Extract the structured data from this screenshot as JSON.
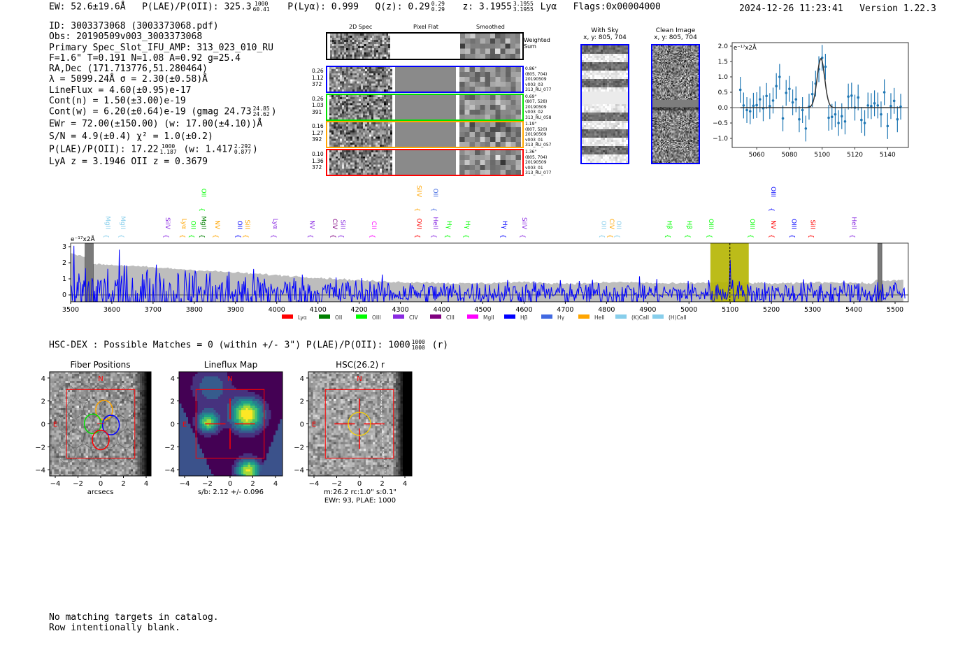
{
  "header": {
    "ew": "EW: 52.6±19.6Å",
    "plae_label": "P(LAE)/P(OII): 325.3",
    "plae_hi": "1000",
    "plae_lo": "60.41",
    "plya": "P(Lyα): 0.999",
    "qz": "Q(z): 0.29",
    "qz_hi": "0.29",
    "qz_lo": "0.29",
    "z": "z: 3.1955",
    "z_hi": "3.1955",
    "z_lo": "3.1955",
    "z_line": "Lyα",
    "flags": "Flags:0x00004000",
    "datetime": "2024-12-26 11:23:41",
    "version": "Version 1.22.3"
  },
  "info": {
    "id": "ID: 3003373068 (3003373068.pdf)",
    "obs": "Obs: 20190509v003_3003373068",
    "primary": "Primary Spec_Slot_IFU_AMP: 313_023_010_RU",
    "params": "F=1.6\"  T=0.191  N=1.08  A=0.92  g=25.4",
    "radec": "RA,Dec (171.713776,51.280464)",
    "lambda": "λ = 5099.24Å   σ = 2.30(±0.58)Å",
    "lineflux": "LineFlux = 4.60(±0.95)e-17",
    "contn": "Cont(n) = 1.50(±3.00)e-19",
    "contw": "Cont(w) = 6.20(±0.64)e-19 (gmag 24.73",
    "contw_hi": "24.85",
    "contw_lo": "24.62",
    "contw_end": ")",
    "ewr": "EWr = 72.00(±150.00) (w: 17.00(±4.10))Å",
    "sn": "S/N = 4.9(±0.4)   χ² = 1.0(±0.2)",
    "plae": "P(LAE)/P(OII): 17.22",
    "plae_hi": "1000",
    "plae_lo": "1.187",
    "plae_w": "(w: 1.417",
    "plae_w_hi": "2.292",
    "plae_w_lo": "0.877",
    "plae_end": ")",
    "z": "LyA z = 3.1946   OII z = 0.3679"
  },
  "spec2d": {
    "col_labels": [
      "2D Spec",
      "Pixel Flat",
      "Smoothed"
    ],
    "weighted_label": [
      "Weighted",
      "Sum"
    ],
    "rows": [
      {
        "color": "#0000ff",
        "left": [
          "0.26",
          "1.12",
          "372"
        ],
        "right": [
          "0.86\"",
          "(805, 704)",
          "20190509",
          "v003_03",
          "313_RU_077"
        ]
      },
      {
        "color": "#00e000",
        "left": [
          "0.26",
          "1.03",
          "391"
        ],
        "right": [
          "0.69\"",
          "(807, 528)",
          "20190509",
          "v003_02",
          "313_RU_058"
        ]
      },
      {
        "color": "#ffa500",
        "left": [
          "0.16",
          "1.27",
          "392"
        ],
        "right": [
          "1.19\"",
          "(807, 520)",
          "20190509",
          "v003_01",
          "313_RU_057"
        ]
      },
      {
        "color": "#ff0000",
        "left": [
          "0.10",
          "1.36",
          "372"
        ],
        "right": [
          "1.36\"",
          "(805, 704)",
          "20190509",
          "v003_01",
          "313_RU_077"
        ]
      }
    ]
  },
  "cutouts": [
    {
      "title": "With Sky",
      "coords": "x, y: 805, 704"
    },
    {
      "title": "Clean Image",
      "coords": "x, y: 805, 704"
    }
  ],
  "hsc": {
    "summary": "HSC-DEX : Possible Matches = 0 (within +/- 3\")  P(LAE)/P(OII): 1000",
    "hi": "1000",
    "lo": "1000",
    "band": "(r)"
  },
  "panels": [
    {
      "title": "Fiber Positions",
      "xlabel": "arcsecs",
      "xlabel2": ""
    },
    {
      "title": "Lineflux Map",
      "xlabel": "s/b: 2.12 +/- 0.096",
      "xlabel2": ""
    },
    {
      "title": "HSC(26.2) r",
      "xlabel": "m:26.2 rc:1.0\"  s:0.1\"",
      "xlabel2": "EWr: 93, PLAE: 1000"
    }
  ],
  "compass": {
    "n": "N",
    "e": "E"
  },
  "panel_ticks": [
    "−4",
    "−2",
    "0",
    "2",
    "4"
  ],
  "footer": [
    "No matching targets in catalog.",
    "Row intentionally blank."
  ],
  "chart_data": [
    {
      "type": "line",
      "title": "",
      "ylabel": "e⁻¹⁷x2Å",
      "xlim": [
        3500,
        5532
      ],
      "ylim": [
        -0.43,
        3.22
      ],
      "xticks": [
        3500,
        3600,
        3700,
        3800,
        3900,
        4000,
        4100,
        4200,
        4300,
        4400,
        4500,
        4600,
        4700,
        4800,
        4900,
        5000,
        5100,
        5200,
        5300,
        5400,
        5500
      ],
      "yticks": [
        0,
        1,
        2,
        3
      ],
      "highlight_region": [
        5052,
        5145
      ],
      "line_center": 5099.24,
      "masked_regions": [
        [
          3535,
          3555
        ],
        [
          5458,
          5468
        ]
      ],
      "flux_peak": {
        "wave": 5099,
        "value": 1.6
      },
      "legend": [
        {
          "label": "Lyα",
          "color": "#ff0000"
        },
        {
          "label": "OII",
          "color": "#008000"
        },
        {
          "label": "OIII",
          "color": "#00ff00"
        },
        {
          "label": "CIV",
          "color": "#8a2be2"
        },
        {
          "label": "CIII",
          "color": "#800080"
        },
        {
          "label": "MgII",
          "color": "#ff00ff"
        },
        {
          "label": "Hβ",
          "color": "#0000ff"
        },
        {
          "label": "Hγ",
          "color": "#4169e1"
        },
        {
          "label": "HeII",
          "color": "#ffa500"
        },
        {
          "label": "(K)CaII",
          "color": "#87ceeb"
        },
        {
          "label": "(H)CaII",
          "color": "#87ceeb"
        }
      ],
      "line_markers": [
        {
          "name": "MgII",
          "wave": 3590,
          "color": "#87ceeb",
          "row": 0
        },
        {
          "name": "MgII",
          "wave": 3626,
          "color": "#87ceeb",
          "row": 0
        },
        {
          "name": "SiIV",
          "wave": 3735,
          "color": "#8a2be2",
          "row": 0
        },
        {
          "name": "Lyα",
          "wave": 3775,
          "color": "#ffa500",
          "row": 0
        },
        {
          "name": "OII",
          "wave": 3797,
          "color": "#00ff00",
          "row": 0
        },
        {
          "name": "MgII",
          "wave": 3822,
          "color": "#008000",
          "row": 0
        },
        {
          "name": "OII",
          "wave": 3822,
          "color": "#00ff00",
          "row": 1
        },
        {
          "name": "NV",
          "wave": 3855,
          "color": "#ffa500",
          "row": 0
        },
        {
          "name": "OII",
          "wave": 3910,
          "color": "#0000ff",
          "row": 0
        },
        {
          "name": "SiII",
          "wave": 3928,
          "color": "#ffa500",
          "row": 0
        },
        {
          "name": "Lyα",
          "wave": 3996,
          "color": "#8a2be2",
          "row": 0
        },
        {
          "name": "NV",
          "wave": 4085,
          "color": "#8a2be2",
          "row": 0
        },
        {
          "name": "CIV",
          "wave": 4140,
          "color": "#800080",
          "row": 0
        },
        {
          "name": "SiII",
          "wave": 4160,
          "color": "#8a2be2",
          "row": 0
        },
        {
          "name": "CII",
          "wave": 4235,
          "color": "#ff00ff",
          "row": 0
        },
        {
          "name": "OVI",
          "wave": 4345,
          "color": "#ff0000",
          "row": 0
        },
        {
          "name": "SiIV",
          "wave": 4345,
          "color": "#ffa500",
          "row": 1
        },
        {
          "name": "HeII",
          "wave": 4385,
          "color": "#8a2be2",
          "row": 0
        },
        {
          "name": "OII",
          "wave": 4385,
          "color": "#4169e1",
          "row": 1
        },
        {
          "name": "Hγ",
          "wave": 4418,
          "color": "#00ff00",
          "row": 0
        },
        {
          "name": "Hγ",
          "wave": 4463,
          "color": "#00ff00",
          "row": 0
        },
        {
          "name": "Hγ",
          "wave": 4553,
          "color": "#0000ff",
          "row": 0
        },
        {
          "name": "SiIV",
          "wave": 4600,
          "color": "#8a2be2",
          "row": 0
        },
        {
          "name": "OII",
          "wave": 4793,
          "color": "#87ceeb",
          "row": 0
        },
        {
          "name": "CIV",
          "wave": 4812,
          "color": "#ffa500",
          "row": 0
        },
        {
          "name": "OII",
          "wave": 4829,
          "color": "#87ceeb",
          "row": 0
        },
        {
          "name": "Hβ",
          "wave": 4952,
          "color": "#00ff00",
          "row": 0
        },
        {
          "name": "Hβ",
          "wave": 5000,
          "color": "#00ff00",
          "row": 0
        },
        {
          "name": "OIII",
          "wave": 5053,
          "color": "#00ff00",
          "row": 0
        },
        {
          "name": "OIII",
          "wave": 5153,
          "color": "#00ff00",
          "row": 0
        },
        {
          "name": "NV",
          "wave": 5204,
          "color": "#ff0000",
          "row": 0
        },
        {
          "name": "OIII",
          "wave": 5204,
          "color": "#0000ff",
          "row": 1
        },
        {
          "name": "OIII",
          "wave": 5254,
          "color": "#0000ff",
          "row": 0
        },
        {
          "name": "SiII",
          "wave": 5300,
          "color": "#ff0000",
          "row": 0
        },
        {
          "name": "HeII",
          "wave": 5400,
          "color": "#8a2be2",
          "row": 0
        }
      ]
    },
    {
      "type": "scatter",
      "title": "",
      "ylabel": "e⁻¹⁷x2Å",
      "xlim": [
        5045,
        5152
      ],
      "ylim": [
        -1.3,
        2.11
      ],
      "xticks": [
        5060,
        5080,
        5100,
        5120,
        5140
      ],
      "yticks": [
        2.0,
        1.5,
        1.0,
        0.5,
        0.0,
        -0.5,
        -1.0
      ],
      "x": [
        5050,
        5052,
        5054,
        5056,
        5058,
        5060,
        5062,
        5064,
        5066,
        5068,
        5070,
        5072,
        5074,
        5076,
        5078,
        5080,
        5082,
        5084,
        5086,
        5088,
        5090,
        5092,
        5094,
        5096,
        5098,
        5100,
        5102,
        5104,
        5106,
        5108,
        5110,
        5112,
        5114,
        5116,
        5118,
        5120,
        5122,
        5124,
        5126,
        5128,
        5130,
        5132,
        5134,
        5136,
        5138,
        5140,
        5142,
        5144,
        5146,
        5148
      ],
      "y": [
        0.58,
        0.07,
        -0.08,
        -0.12,
        0.06,
        0.08,
        0.27,
        -0.02,
        0.38,
        0.05,
        0.23,
        0.7,
        1.0,
        -0.35,
        0.48,
        0.61,
        0.17,
        0.27,
        -0.38,
        -0.08,
        -0.68,
        0.03,
        0.44,
        0.78,
        1.25,
        1.62,
        1.33,
        -0.33,
        -0.3,
        -0.22,
        -0.5,
        -0.28,
        -0.45,
        0.36,
        0.39,
        0.0,
        0.33,
        -0.4,
        -0.5,
        0.07,
        0.05,
        0.14,
        0.07,
        -0.22,
        0.5,
        -0.6,
        0.05,
        0.22,
        -0.38,
        0.03
      ],
      "yerr": 0.42,
      "fit": {
        "type": "gaussian",
        "center": 5099.24,
        "sigma": 2.3,
        "amplitude": 1.6
      }
    }
  ]
}
